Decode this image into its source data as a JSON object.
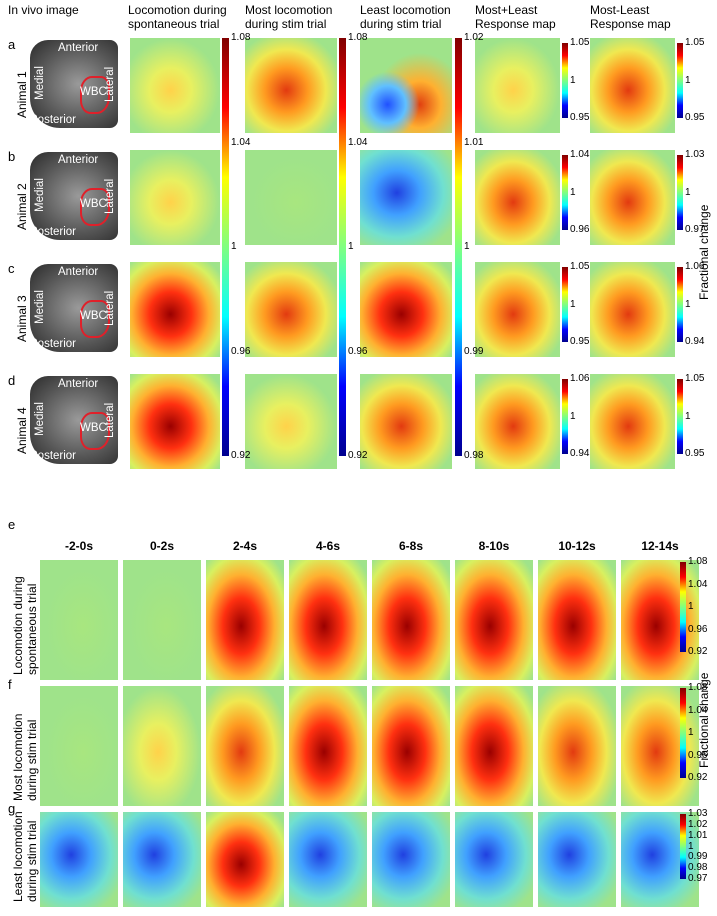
{
  "panel_labels": [
    "a",
    "b",
    "c",
    "d",
    "e",
    "f",
    "g"
  ],
  "top": {
    "column_headers": [
      [
        "In vivo image"
      ],
      [
        "Locomotion during",
        "spontaneous trial"
      ],
      [
        "Most locomotion",
        "during stim trial"
      ],
      [
        "Least locomotion",
        "during stim trial"
      ],
      [
        "Most+Least",
        "Response map"
      ],
      [
        "Most-Least",
        "Response map"
      ]
    ],
    "tall_colorbars": [
      [
        "1.08",
        "1.04",
        "1",
        "0.96",
        "0.92"
      ],
      [
        "1.08",
        "1.04",
        "1",
        "0.96",
        "0.92"
      ],
      [
        "1.02",
        "1.01",
        "1",
        "0.99",
        "0.98"
      ]
    ],
    "rows": [
      {
        "label": "Animal 1",
        "image_labels": [
          "Anterior",
          "Medial",
          "Lateral",
          "WBC",
          "Posterior"
        ],
        "colorbar_sum": [
          "1.05",
          "1",
          "0.95"
        ],
        "colorbar_diff": [
          "1.05",
          "1",
          "0.95"
        ]
      },
      {
        "label": "Animal 2",
        "image_labels": [
          "Anterior",
          "Medial",
          "Lateral",
          "WBC",
          "Posterior"
        ],
        "colorbar_sum": [
          "1.04",
          "1",
          "0.96"
        ],
        "colorbar_diff": [
          "1.03",
          "1",
          "0.97"
        ]
      },
      {
        "label": "Animal 3",
        "image_labels": [
          "Anterior",
          "Medial",
          "Lateral",
          "WBC",
          "Posterior"
        ],
        "colorbar_sum": [
          "1.05",
          "1",
          "0.95"
        ],
        "colorbar_diff": [
          "1.06",
          "1",
          "0.94"
        ]
      },
      {
        "label": "Animal 4",
        "image_labels": [
          "Anterior",
          "Medial",
          "Lateral",
          "WBC",
          "Posterior"
        ],
        "colorbar_sum": [
          "1.06",
          "1",
          "0.94"
        ],
        "colorbar_diff": [
          "1.05",
          "1",
          "0.95"
        ]
      }
    ],
    "side_label": "Fractional change"
  },
  "bottom": {
    "time_headers": [
      "-2-0s",
      "0-2s",
      "2-4s",
      "4-6s",
      "6-8s",
      "8-10s",
      "10-12s",
      "12-14s"
    ],
    "rows": [
      {
        "label": [
          "Locomotion during",
          "spontaneous trial"
        ],
        "colorbar": [
          "1.08",
          "1.04",
          "1",
          "0.96",
          "0.92"
        ]
      },
      {
        "label": [
          "Most locomotion",
          "during stim trial"
        ],
        "colorbar": [
          "1.08",
          "1.04",
          "1",
          "0.96",
          "0.92"
        ]
      },
      {
        "label": [
          "Least locomotion",
          "during stim trial"
        ],
        "colorbar": [
          "1.03",
          "1.02",
          "1.01",
          "1",
          "0.99",
          "0.98",
          "0.97"
        ]
      }
    ],
    "side_label": "Fractional change"
  }
}
